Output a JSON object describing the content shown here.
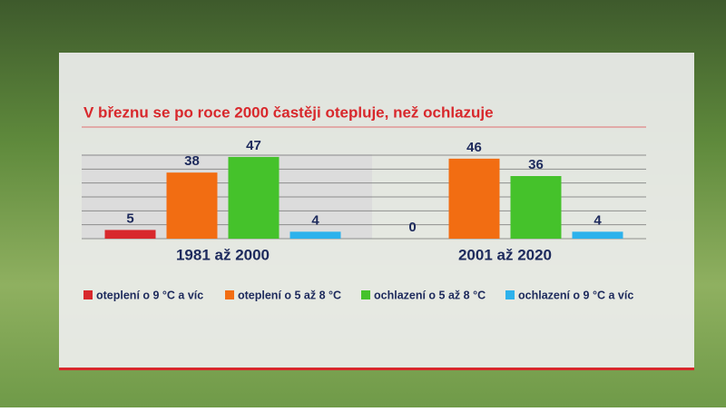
{
  "chart_data": {
    "type": "bar",
    "title": "V březnu se po roce 2000 častěji otepluje, než ochlazuje",
    "categories": [
      "1981 až 2000",
      "2001 až 2020"
    ],
    "series": [
      {
        "name": "oteplení o 9 °C a víc",
        "color": "#d8282c",
        "values": [
          5,
          0
        ]
      },
      {
        "name": "oteplení o 5 až 8 °C",
        "color": "#f26d12",
        "values": [
          38,
          46
        ]
      },
      {
        "name": "ochlazení o 5 až 8 °C",
        "color": "#45c22b",
        "values": [
          47,
          36
        ]
      },
      {
        "name": "ochlazení o 9 °C a víc",
        "color": "#2db2ec",
        "values": [
          4,
          4
        ]
      }
    ],
    "ylim": [
      0,
      48
    ],
    "yticks": [
      0,
      8,
      16,
      24,
      32,
      40,
      48
    ],
    "grid": true
  }
}
